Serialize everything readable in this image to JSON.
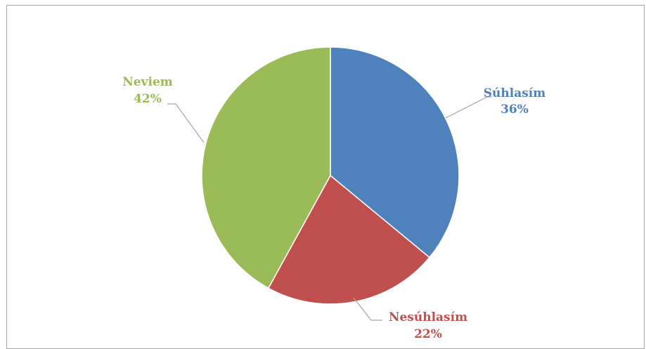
{
  "chart_data": {
    "type": "pie",
    "title": "",
    "slices": [
      {
        "label": "Súhlasím",
        "percent_label": "36%",
        "value": 36,
        "color": "#4f81bd"
      },
      {
        "label": "Nesúhlasím",
        "percent_label": "22%",
        "value": 22,
        "color": "#c0504d"
      },
      {
        "label": "Neviem",
        "percent_label": "42%",
        "value": 42,
        "color": "#9bbb59"
      }
    ],
    "legend": "none",
    "label_style": "outside-with-leader-lines"
  },
  "colors": {
    "border": "#a6a6a6",
    "leader_line": "#a6a6a6"
  }
}
